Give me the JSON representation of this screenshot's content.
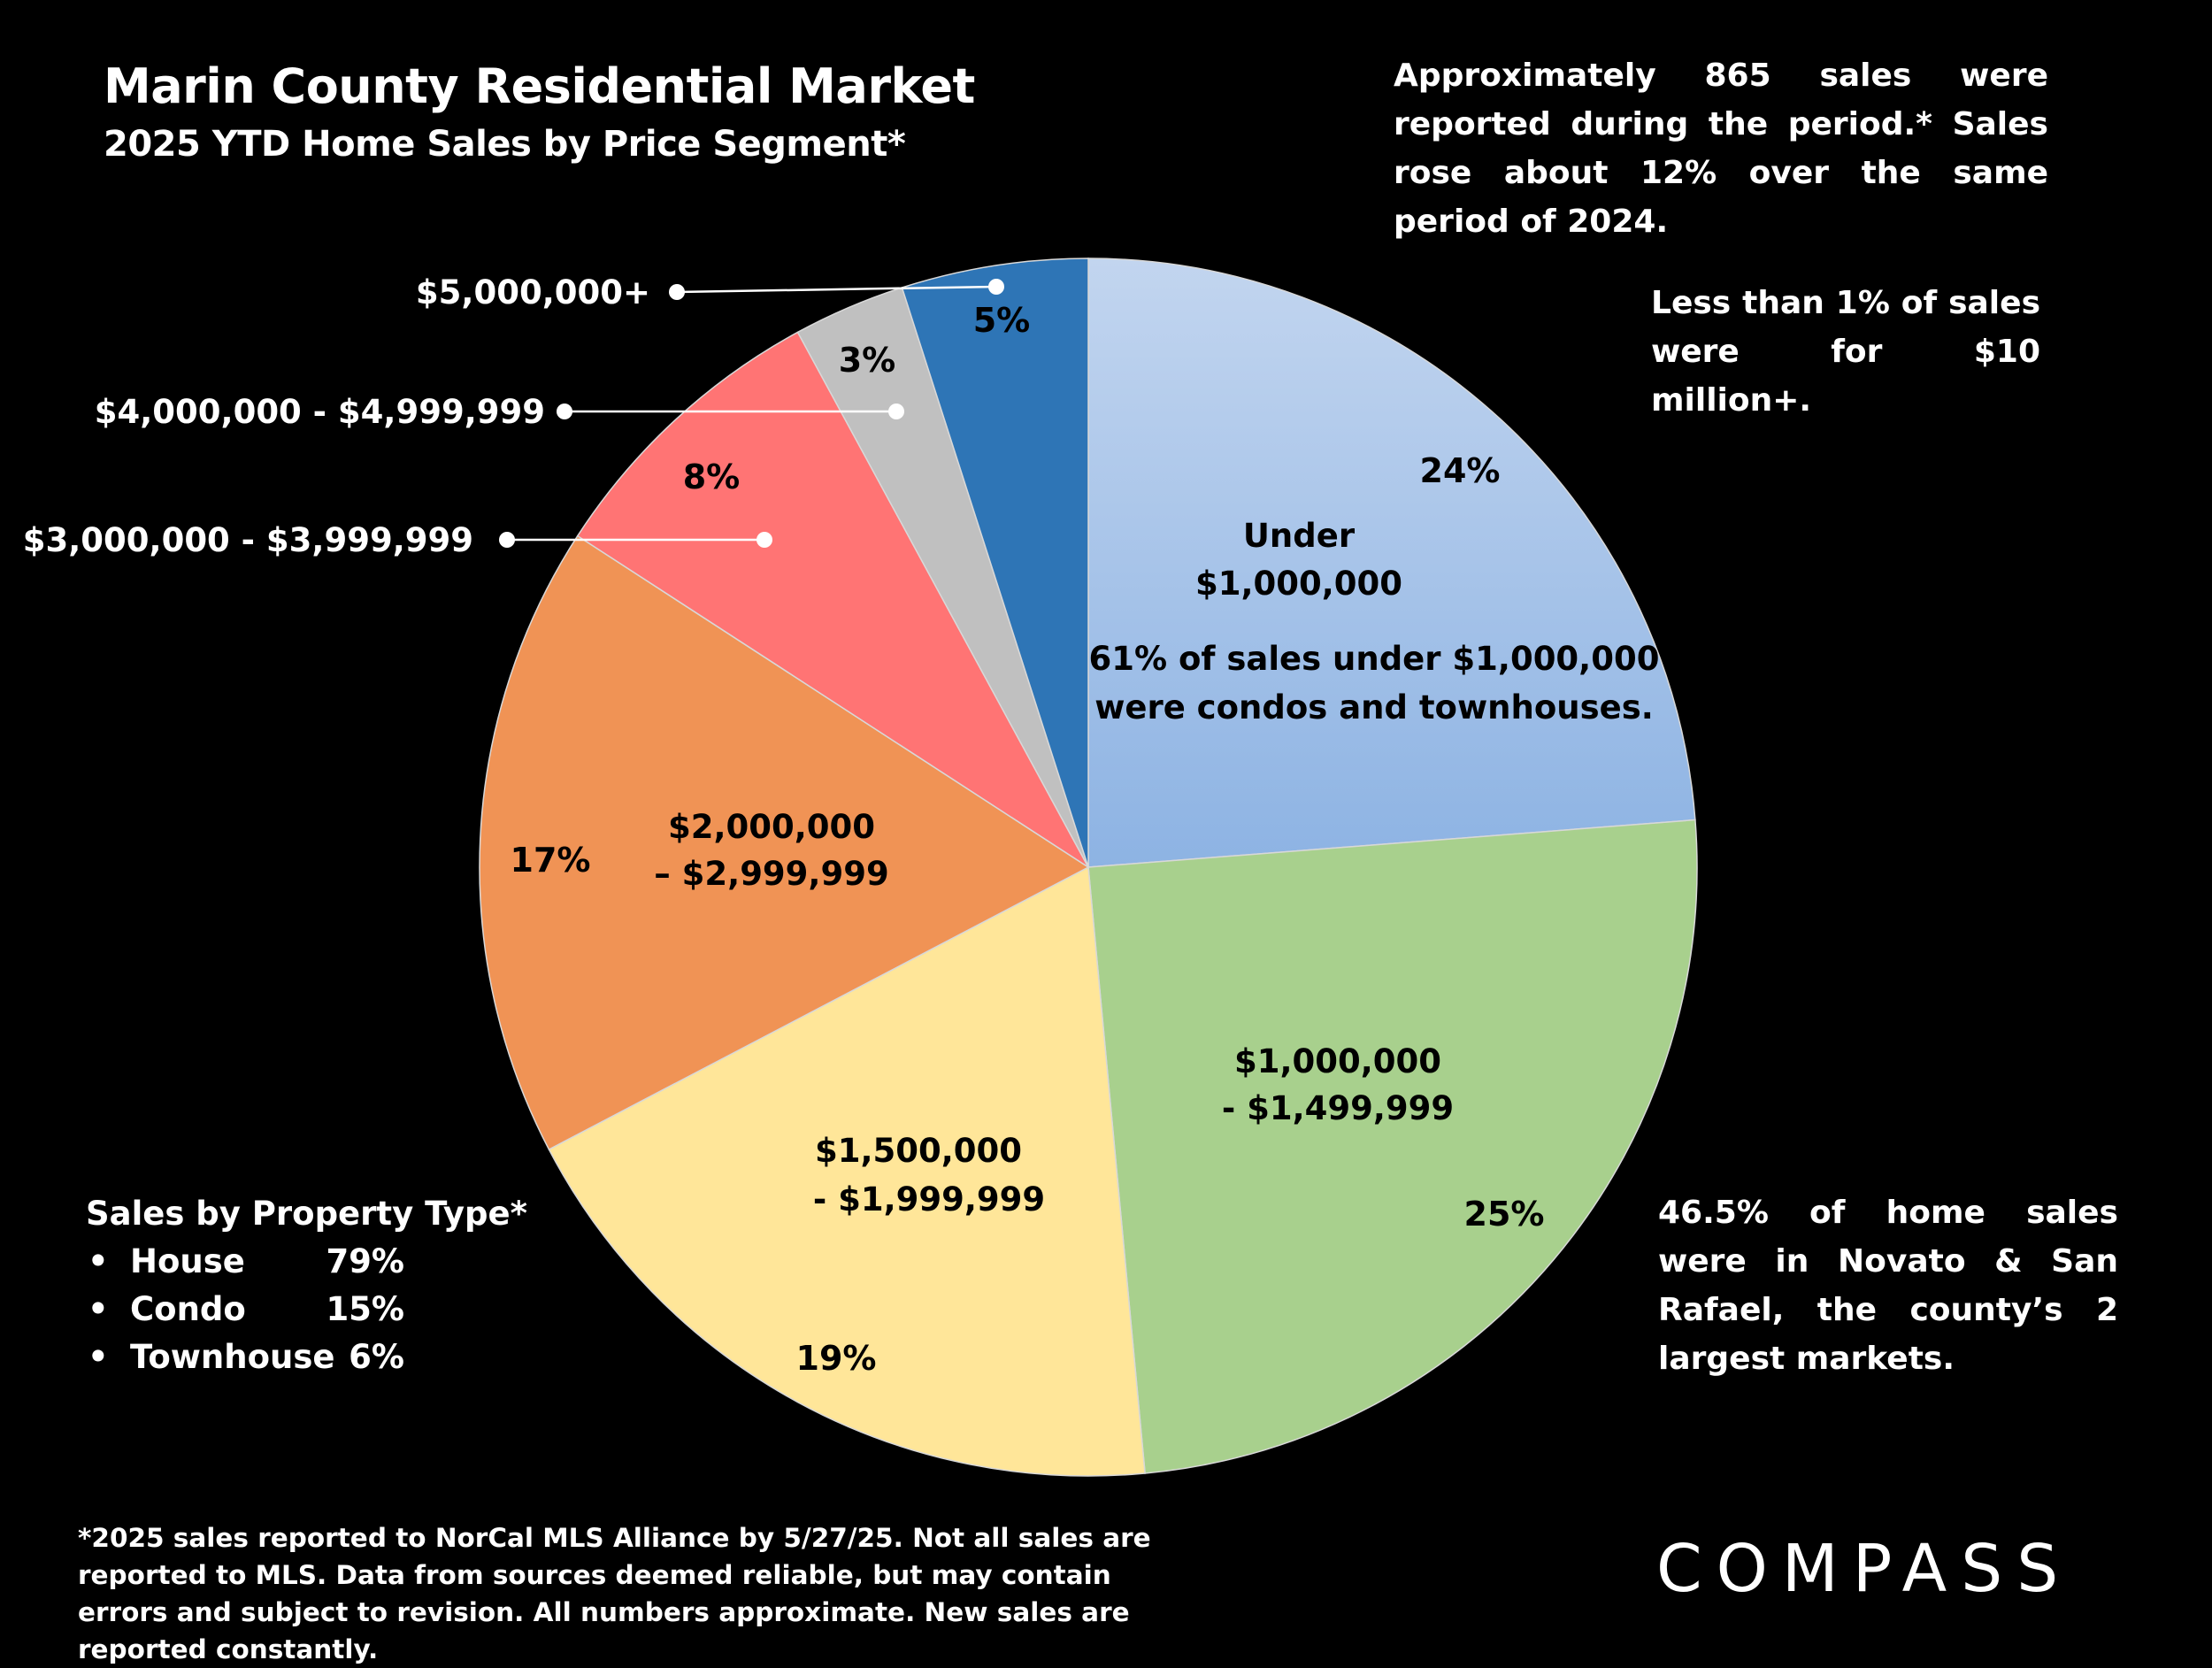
{
  "title": "Marin County Residential Market",
  "subtitle": "2025 YTD Home Sales by Price Segment*",
  "notes": {
    "top": "Approximately 865 sales were reported during the period.* Sales rose about 12% over the same period of 2024.",
    "ten_million": "Less than 1% of sales were for $10 million+.",
    "under_million": "61% of sales under $1,000,000 were condos and townhouses.",
    "novato": "46.5% of home sales were in Novato & San Rafael, the county’s 2 largest markets."
  },
  "property_type": {
    "heading": "Sales by Property Type*",
    "items": [
      {
        "name": "House",
        "value": "79%"
      },
      {
        "name": "Condo",
        "value": "15%"
      },
      {
        "name": "Townhouse",
        "value": "6%"
      }
    ]
  },
  "footnote": "*2025 sales reported to NorCal MLS Alliance by 5/27/25. Not all sales are reported to MLS. Data from sources deemed reliable, but may contain errors and subject to revision. All numbers approximate. New sales are reported constantly.",
  "logo_text": "COMPASS",
  "chart_data": {
    "type": "pie",
    "start": "12 o'clock, clockwise",
    "slices": [
      {
        "label_lines": [
          "Under",
          "$1,000,000"
        ],
        "value": 24,
        "pct_label": "24%",
        "color": "#a9c5ea"
      },
      {
        "label_lines": [
          "$1,000,000",
          "- $1,499,999"
        ],
        "value": 25,
        "pct_label": "25%",
        "color": "#a8d08d"
      },
      {
        "label_lines": [
          "$1,500,000",
          "- $1,999,999"
        ],
        "value": 19,
        "pct_label": "19%",
        "color": "#ffe699"
      },
      {
        "label_lines": [
          "$2,000,000",
          "– $2,999,999"
        ],
        "value": 17,
        "pct_label": "17%",
        "color": "#f09355"
      },
      {
        "label_lines": [
          "$3,000,000 - $3,999,999"
        ],
        "value": 8,
        "pct_label": "8%",
        "color": "#ff7474",
        "callout": true
      },
      {
        "label_lines": [
          "$4,000,000 - $4,999,999"
        ],
        "value": 3,
        "pct_label": "3%",
        "color": "#c0c0c0",
        "callout": true
      },
      {
        "label_lines": [
          "$5,000,000+"
        ],
        "value": 5,
        "pct_label": "5%",
        "color": "#2e75b6",
        "callout": true
      }
    ]
  }
}
